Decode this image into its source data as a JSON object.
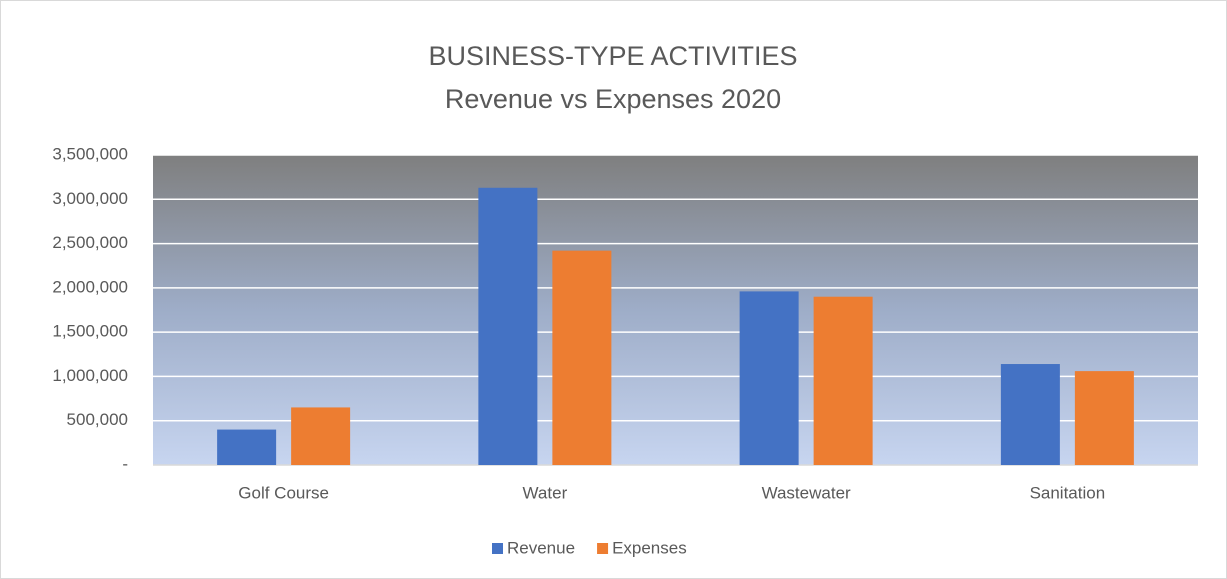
{
  "chart_data": {
    "type": "bar",
    "title": "BUSINESS-TYPE ACTIVITIES",
    "subtitle": "Revenue vs Expenses 2020",
    "categories": [
      "Golf Course",
      "Water",
      "Wastewater",
      "Sanitation"
    ],
    "series": [
      {
        "name": "Revenue",
        "color": "#4472c4",
        "values": [
          400000,
          3130000,
          1960000,
          1140000
        ]
      },
      {
        "name": "Expenses",
        "color": "#ed7d31",
        "values": [
          650000,
          2420000,
          1900000,
          1060000
        ]
      }
    ],
    "ylim": [
      0,
      3500000
    ],
    "yticks": [
      {
        "value": 0,
        "label": "-"
      },
      {
        "value": 500000,
        "label": "500,000"
      },
      {
        "value": 1000000,
        "label": "1,000,000"
      },
      {
        "value": 1500000,
        "label": "1,500,000"
      },
      {
        "value": 2000000,
        "label": "2,000,000"
      },
      {
        "value": 2500000,
        "label": "2,500,000"
      },
      {
        "value": 3000000,
        "label": "3,000,000"
      },
      {
        "value": 3500000,
        "label": "3,500,000"
      }
    ],
    "grid": true,
    "legend": "bottom"
  }
}
